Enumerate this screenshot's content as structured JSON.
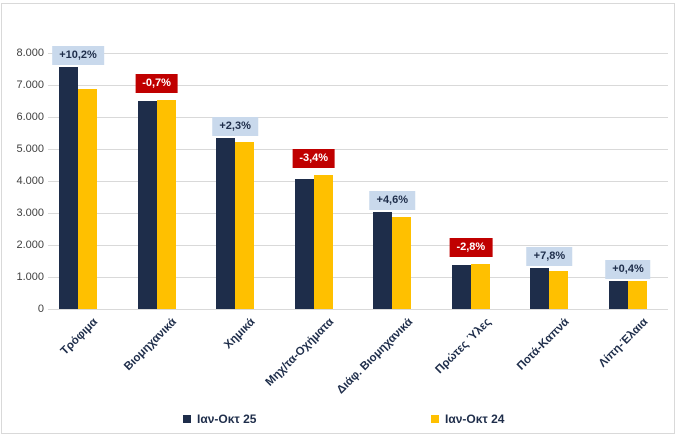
{
  "chart_data": {
    "type": "bar",
    "title": "",
    "xlabel": "",
    "ylabel": "",
    "categories": [
      "Τρόφιμα",
      "Βιομηχανικά",
      "Χημικά",
      "Μηχ/τα-Οχήματα",
      "Διάφ. Βιομηχανικά",
      "Πρώτες Ύλες",
      "Ποτά-Καπνά",
      "Λίπη-Έλαια"
    ],
    "series": [
      {
        "name": "Ιαν-Οκτ 25",
        "color": "#1e2d4a",
        "values": [
          7570,
          6490,
          5350,
          4060,
          3020,
          1380,
          1290,
          875
        ]
      },
      {
        "name": "Ιαν-Οκτ 24",
        "color": "#ffc000",
        "values": [
          6870,
          6535,
          5230,
          4200,
          2890,
          1420,
          1195,
          871
        ]
      }
    ],
    "change_labels": [
      {
        "text": "+10,2%",
        "sentiment": "positive"
      },
      {
        "text": "-0,7%",
        "sentiment": "negative"
      },
      {
        "text": "+2,3%",
        "sentiment": "positive"
      },
      {
        "text": "-3,4%",
        "sentiment": "negative"
      },
      {
        "text": "+4,6%",
        "sentiment": "positive"
      },
      {
        "text": "-2,8%",
        "sentiment": "negative"
      },
      {
        "text": "+7,8%",
        "sentiment": "positive"
      },
      {
        "text": "+0,4%",
        "sentiment": "positive"
      }
    ],
    "y_tick_labels": [
      "8.000",
      "7.000",
      "6.000",
      "5.000",
      "4.000",
      "3.000",
      "2.000",
      "1.000",
      "0"
    ],
    "ylim": [
      0,
      8000
    ],
    "y_tick_step": 1000,
    "grid": true,
    "legend_position": "bottom"
  },
  "colors": {
    "series_25": "#1e2d4a",
    "series_24": "#ffc000",
    "positive_badge_bg": "#c9d9ec",
    "positive_badge_text": "#1e2d4a",
    "negative_badge_bg": "#c00000",
    "negative_badge_text": "#ffffff",
    "gridline": "#d9d9d9",
    "axis_tick_text": "#3f3f3f",
    "category_text": "#1e2d4a",
    "legend_text": "#1e2d4a",
    "frame_border": "#d9d9d9",
    "background": "#ffffff"
  }
}
